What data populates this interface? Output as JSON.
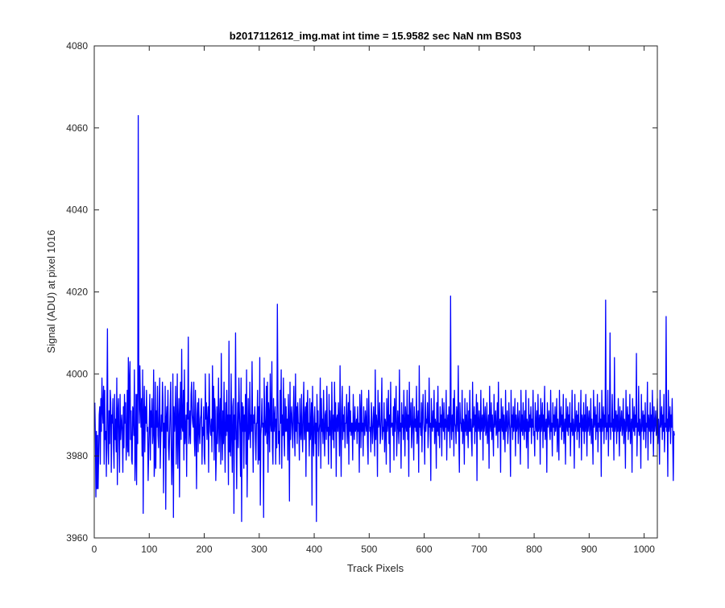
{
  "chart_data": {
    "type": "line",
    "title": "b2017112612_img.mat int time = 15.9582 sec  NaN nm BS03",
    "xlabel": "Track Pixels",
    "ylabel": "Signal (ADU) at pixel 1016",
    "xlim": [
      0,
      1024
    ],
    "ylim": [
      3960,
      4080
    ],
    "xticks": [
      0,
      100,
      200,
      300,
      400,
      500,
      600,
      700,
      800,
      900,
      1000
    ],
    "yticks": [
      3960,
      3980,
      4000,
      4020,
      4040,
      4060,
      4080
    ],
    "xtick_labels": [
      "0",
      "100",
      "200",
      "300",
      "400",
      "500",
      "600",
      "700",
      "800",
      "900",
      "1000"
    ],
    "ytick_labels": [
      "3960",
      "3980",
      "4000",
      "4020",
      "4040",
      "4060",
      "4080"
    ],
    "grid": false,
    "line_color": "#0000ff",
    "series": [
      {
        "x_start": 1,
        "x_step": 1,
        "values": [
          3993,
          3985,
          3970,
          3986,
          3972,
          3985,
          3972,
          3980,
          3990,
          3992,
          3978,
          3994,
          3986,
          3999,
          3991,
          3988,
          3997,
          3978,
          3996,
          3984,
          3986,
          3975,
          3993,
          4011,
          3982,
          3978,
          3991,
          3983,
          3996,
          3993,
          3976,
          3990,
          3988,
          3994,
          3982,
          3977,
          3995,
          3984,
          3989,
          3981,
          3999,
          3973,
          3991,
          3994,
          3984,
          3976,
          3995,
          3984,
          3987,
          3990,
          3986,
          3976,
          3992,
          3982,
          3995,
          3988,
          3993,
          3979,
          3983,
          3996,
          3981,
          4004,
          3980,
          3999,
          4003,
          3984,
          3991,
          3979,
          3978,
          3992,
          3991,
          3985,
          4001,
          3974,
          3980,
          3995,
          3973,
          3995,
          3983,
          4063,
          3997,
          3988,
          4002,
          3992,
          3987,
          3994,
          3980,
          4001,
          3966,
          3990,
          3997,
          3981,
          3992,
          3988,
          3996,
          3986,
          3987,
          3974,
          3981,
          3988,
          3995,
          3979,
          3991,
          3987,
          3994,
          3983,
          3986,
          4001,
          3975,
          3978,
          3998,
          3977,
          3991,
          3987,
          3997,
          3985,
          3982,
          3991,
          3999,
          3977,
          3984,
          3990,
          3986,
          3998,
          3993,
          3971,
          3988,
          3982,
          3997,
          3967,
          3989,
          3992,
          3986,
          3996,
          3982,
          3979,
          3985,
          3991,
          3998,
          3982,
          3973,
          3980,
          4000,
          3965,
          3992,
          3986,
          3989,
          3997,
          3978,
          3985,
          4000,
          3977,
          3988,
          3994,
          3970,
          3990,
          3998,
          3984,
          4006,
          3987,
          3986,
          3996,
          3979,
          4001,
          3983,
          3986,
          3990,
          3975,
          3993,
          3989,
          4009,
          3983,
          3986,
          3991,
          3983,
          3995,
          3998,
          3990,
          3988,
          3987,
          3998,
          3984,
          3980,
          3996,
          3986,
          3972,
          3990,
          3993,
          3981,
          3994,
          3986,
          3983,
          3989,
          3990,
          3994,
          3978,
          3987,
          3985,
          3992,
          3980,
          3978,
          4000,
          3989,
          3993,
          3984,
          3988,
          3992,
          3976,
          4000,
          3990,
          3986,
          3985,
          3989,
          3981,
          4002,
          3986,
          3997,
          3979,
          3994,
          3991,
          3974,
          3980,
          3992,
          3983,
          3988,
          3999,
          3981,
          3988,
          3994,
          3978,
          4005,
          3986,
          3979,
          3991,
          3983,
          3998,
          3986,
          3976,
          3993,
          3985,
          3996,
          3986,
          3990,
          3973,
          4008,
          3981,
          3990,
          3980,
          4000,
          3985,
          3976,
          3992,
          3994,
          3966,
          3990,
          3984,
          4010,
          3987,
          3972,
          3986,
          3993,
          3982,
          3999,
          3991,
          3986,
          3975,
          3999,
          3964,
          3993,
          3986,
          3992,
          3977,
          3990,
          3986,
          3995,
          3978,
          4001,
          3970,
          3984,
          3994,
          3984,
          3986,
          3998,
          3982,
          3990,
          3986,
          4003,
          3988,
          3976,
          3990,
          3988,
          3992,
          3984,
          3979,
          3988,
          3988,
          3996,
          3978,
          3992,
          3979,
          4004,
          3968,
          3985,
          3988,
          3994,
          3987,
          3988,
          3965,
          3999,
          3990,
          3985,
          3986,
          3997,
          3983,
          3998,
          3976,
          3993,
          3990,
          3981,
          4000,
          3988,
          3986,
          4003,
          3982,
          3978,
          3994,
          3986,
          3989,
          3992,
          3978,
          3989,
          3982,
          4017,
          3995,
          3983,
          3986,
          3978,
          3996,
          3988,
          4001,
          3977,
          3990,
          3985,
          3999,
          3985,
          3980,
          3994,
          3986,
          3992,
          3986,
          3989,
          3979,
          3995,
          3988,
          3969,
          3998,
          3984,
          3989,
          3992,
          3987,
          3982,
          3990,
          3997,
          3986,
          3980,
          4000,
          3986,
          3992,
          3983,
          3993,
          3988,
          3988,
          3979,
          3994,
          3986,
          3984,
          3995,
          3986,
          3981,
          3990,
          3998,
          3984,
          3989,
          3992,
          3975,
          3993,
          3986,
          3996,
          3986,
          3988,
          3980,
          3994,
          3984,
          3987,
          3993,
          3968,
          3997,
          3986,
          3980,
          3989,
          3992,
          3983,
          3988,
          3964,
          3995,
          3986,
          3991,
          3980,
          3986,
          3988,
          3999,
          3977,
          3994,
          3986,
          3989,
          3983,
          3996,
          3987,
          3980,
          3990,
          3991,
          3984,
          3997,
          3986,
          3987,
          3978,
          3995,
          3985,
          3991,
          3987,
          3977,
          3998,
          3988,
          3984,
          3990,
          3982,
          3998,
          3986,
          3993,
          3975,
          3989,
          3990,
          3986,
          3993,
          3988,
          3980,
          4002,
          3987,
          3975,
          3991,
          3997,
          3984,
          3990,
          3986,
          3992,
          3982,
          3988,
          3988,
          3995,
          3983,
          3987,
          3993,
          3978,
          3997,
          3986,
          3991,
          3985,
          3988,
          3988,
          3979,
          3995,
          3987,
          3984,
          3992,
          3986,
          3987,
          3989,
          3983,
          3992,
          3986,
          3988,
          3976,
          3995,
          3990,
          3982,
          3996,
          3986,
          3988,
          3980,
          3992,
          3987,
          3985,
          3991,
          3988,
          3986,
          3994,
          3983,
          3978,
          3996,
          3990,
          3986,
          3987,
          3981,
          3993,
          3989,
          3983,
          3986,
          3992,
          3988,
          3980,
          4001,
          3984,
          3990,
          3988,
          3975,
          3996,
          3987,
          3988,
          3993,
          3983,
          3985,
          3990,
          3999,
          3984,
          3987,
          3986,
          3993,
          3981,
          3989,
          3988,
          3978,
          3994,
          3986,
          3988,
          3996,
          3983,
          3990,
          3976,
          3998,
          3987,
          3988,
          3988,
          3985,
          3992,
          3979,
          3994,
          3986,
          3990,
          3997,
          3980,
          3986,
          3991,
          3987,
          3983,
          4001,
          3986,
          3988,
          3977,
          3993,
          3987,
          3990,
          3984,
          3996,
          3988,
          3980,
          3992,
          3988,
          3986,
          3996,
          3984,
          3990,
          3975,
          3998,
          3987,
          3988,
          3993,
          3982,
          3986,
          3994,
          3987,
          3979,
          3992,
          3987,
          3989,
          3986,
          3997,
          3983,
          3988,
          3991,
          3976,
          4002,
          3987,
          3988,
          3985,
          3993,
          3981,
          3990,
          3995,
          3988,
          3986,
          3978,
          3996,
          3986,
          3989,
          3988,
          3993,
          3982,
          3986,
          3999,
          3987,
          3988,
          3974,
          3994,
          3988,
          3986,
          3991,
          3987,
          3996,
          3983,
          3989,
          3988,
          3977,
          3993,
          3986,
          3997,
          3985,
          3988,
          3982,
          3992,
          3987,
          3990,
          3980,
          3994,
          3988,
          3986,
          3993,
          3984,
          3989,
          3987,
          3996,
          3979,
          3988,
          3990,
          3986,
          3992,
          3987,
          3982,
          4019,
          3988,
          3984,
          3990,
          3986,
          3994,
          3980,
          3996,
          3988,
          3987,
          3983,
          3992,
          3989,
          3986,
          4002,
          3984,
          3976,
          3993,
          3988,
          3988,
          3986,
          3996,
          3983,
          3989,
          3988,
          3978,
          3994,
          3986,
          3990,
          3985,
          3993,
          3987,
          3982,
          3991,
          3986,
          3996,
          3986,
          3989,
          3984,
          3980,
          3998,
          3987,
          3988,
          3992,
          3983,
          3990,
          3986,
          3995,
          3974,
          3993,
          3988,
          3986,
          3991,
          3987,
          3984,
          3996,
          3986,
          3988,
          3990,
          3979,
          3994,
          3986,
          3988,
          3992,
          3985,
          3986,
          3993,
          3983,
          3987,
          3990,
          3977,
          3997,
          3988,
          3986,
          3993,
          3984,
          3990,
          3986,
          3980,
          3995,
          3987,
          3988,
          3991,
          3985,
          3986,
          3993,
          3982,
          3998,
          3986,
          3987,
          3989,
          3976,
          3994,
          3988,
          3986,
          3992,
          3984,
          3990,
          3987,
          3981,
          3996,
          3986,
          3988,
          3991,
          3983,
          3986,
          3993,
          3988,
          3986,
          3975,
          3996,
          3987,
          3990,
          3984,
          3992,
          3986,
          3988,
          3994,
          3980,
          3990,
          3986,
          3987,
          3993,
          3983,
          3988,
          3991,
          3986,
          3978,
          3996,
          3986,
          3990,
          3985,
          3993,
          3987,
          3984,
          3991,
          3986,
          3996,
          3982,
          3989,
          3988,
          3977,
          3994,
          3986,
          3990,
          3987,
          3992,
          3983,
          3989,
          3987,
          3996,
          3985,
          3986,
          3980,
          3993,
          3988,
          3986,
          3991,
          3984,
          3995,
          3986,
          3988,
          3990,
          3978,
          3994,
          3986,
          3988,
          3993,
          3982,
          3990,
          3986,
          3997,
          3984,
          3987,
          3989,
          3976,
          3993,
          3987,
          3988,
          3991,
          3986,
          3984,
          3996,
          3986,
          3988,
          3980,
          3993,
          3987,
          3990,
          3985,
          3992,
          3986,
          3988,
          3994,
          3981,
          3989,
          3986,
          3979,
          3996,
          3987,
          3988,
          3992,
          3984,
          3990,
          3986,
          3995,
          3983,
          3987,
          3989,
          3978,
          3994,
          3988,
          3986,
          3992,
          3985,
          3990,
          3987,
          3993,
          3980,
          3988,
          3986,
          3996,
          3985,
          3989,
          3987,
          3977,
          3995,
          3986,
          3988,
          3991,
          3984,
          3990,
          3986,
          3993,
          3982,
          3988,
          3987,
          3996,
          3979,
          3990,
          3988,
          3986,
          3993,
          3983,
          3990,
          3986,
          3995,
          3987,
          3980,
          3992,
          3986,
          3988,
          3991,
          3985,
          3987,
          3994,
          3983,
          3989,
          3986,
          3978,
          3996,
          3987,
          3988,
          3992,
          3984,
          3990,
          3986,
          3995,
          3981,
          3988,
          3987,
          3993,
          3986,
          3989,
          3975,
          3996,
          3986,
          3988,
          3992,
          3983,
          3990,
          3987,
          4018,
          3984,
          3988,
          3986,
          3996,
          3980,
          3990,
          3987,
          4010,
          3984,
          3988,
          3987,
          3995,
          3986,
          3989,
          3979,
          4004,
          3986,
          3988,
          3991,
          3983,
          3990,
          3986,
          3994,
          3987,
          3980,
          3992,
          3986,
          3988,
          3991,
          3985,
          3987,
          3994,
          3983,
          3989,
          3988,
          3977,
          3996,
          3986,
          3988,
          3992,
          3984,
          3990,
          3986,
          3995,
          3983,
          3987,
          3989,
          3976,
          3994,
          3988,
          3986,
          3992,
          3985,
          3990,
          3987,
          4005,
          3980,
          3988,
          3986,
          3997,
          3985,
          3989,
          3987,
          3977,
          3995,
          3986,
          3988,
          3991,
          3984,
          3990,
          3986,
          3993,
          3982,
          3988,
          3987,
          3998,
          3979,
          3990,
          3988,
          3986,
          3993,
          3983,
          3990,
          3986,
          3996,
          3987,
          3980,
          3992,
          3986,
          3988,
          3991,
          3985,
          3987,
          3994,
          3983,
          3989,
          3986,
          3978,
          3996,
          3987,
          3988,
          3992,
          3984,
          3990,
          3986,
          3995,
          3981,
          3988,
          3987,
          4014,
          3986,
          3989,
          3975,
          3996,
          3986,
          3988,
          3992,
          3983,
          3990,
          3987,
          3994,
          3984,
          3974,
          3986,
          3985
        ]
      }
    ]
  }
}
